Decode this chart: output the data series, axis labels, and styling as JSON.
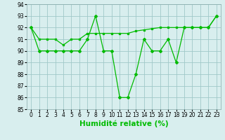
{
  "x": [
    0,
    1,
    2,
    3,
    4,
    5,
    6,
    7,
    8,
    9,
    10,
    11,
    12,
    13,
    14,
    15,
    16,
    17,
    18,
    19,
    20,
    21,
    22,
    23
  ],
  "y_data": [
    92,
    90,
    90,
    90,
    90,
    90,
    90,
    91,
    93,
    90,
    90,
    86,
    86,
    88,
    91,
    90,
    90,
    91,
    89,
    92,
    92,
    92,
    92,
    93
  ],
  "y_trend": [
    92,
    91,
    91,
    91,
    90.5,
    91,
    91,
    91.5,
    91.5,
    91.5,
    91.5,
    91.5,
    91.5,
    91.7,
    91.8,
    91.9,
    92,
    92,
    92,
    92,
    92,
    92,
    92,
    93
  ],
  "bg_color": "#d8eeee",
  "grid_color": "#a0c8c8",
  "line_color": "#00bb00",
  "ylim": [
    85,
    94
  ],
  "yticks": [
    85,
    86,
    87,
    88,
    89,
    90,
    91,
    92,
    93,
    94
  ],
  "xlabel": "Humidité relative (%)",
  "tick_fontsize": 5.5,
  "xlabel_fontsize": 7.5
}
